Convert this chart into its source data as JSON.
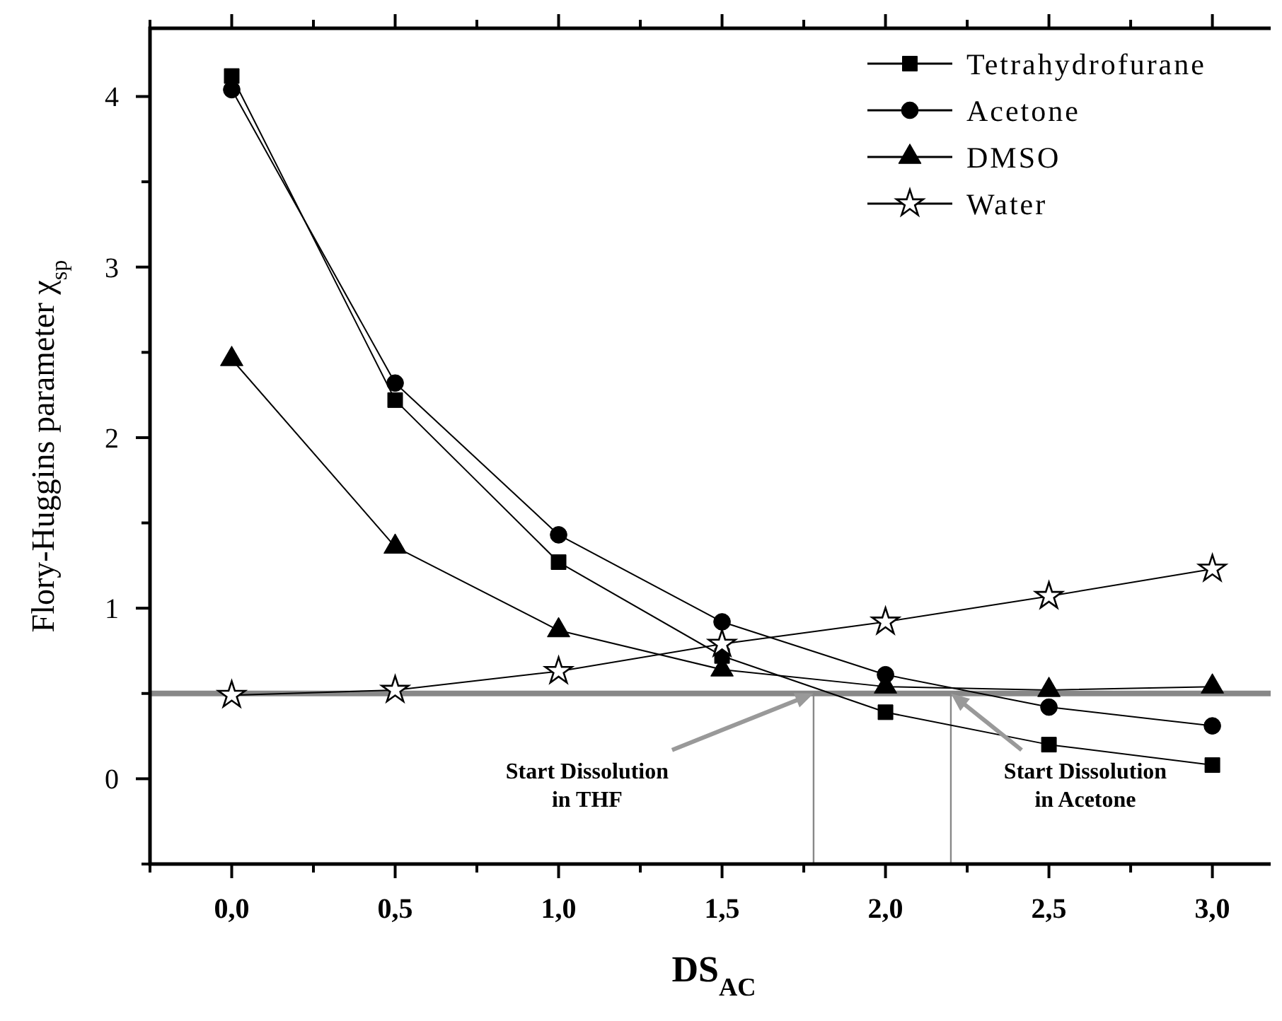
{
  "chart_data": {
    "type": "line",
    "xlabel": "DS$_{AC}$",
    "ylabel": "Flory-Huggins parameter χ$_{sp}$",
    "x": [
      0,
      0.5,
      1,
      1.5,
      2,
      2.5,
      3
    ],
    "series": [
      {
        "name": "Tetrahydrofurane",
        "color": "#000000",
        "marker": "square",
        "values": [
          4.12,
          2.22,
          1.27,
          0.72,
          0.39,
          0.2,
          0.08
        ]
      },
      {
        "name": "Acetone",
        "color": "#000000",
        "marker": "circle",
        "values": [
          4.04,
          2.32,
          1.43,
          0.92,
          0.61,
          0.42,
          0.31
        ]
      },
      {
        "name": "DMSO",
        "color": "#000000",
        "marker": "triangle",
        "values": [
          2.46,
          1.36,
          0.87,
          0.64,
          0.54,
          0.52,
          0.54
        ]
      },
      {
        "name": "Water",
        "color": "#000000",
        "marker": "star",
        "values": [
          0.49,
          0.52,
          0.63,
          0.79,
          0.92,
          1.07,
          1.23
        ]
      }
    ],
    "xlim": [
      -0.25,
      3.2
    ],
    "ylim": [
      -0.5,
      4.4
    ],
    "xticks": [
      {
        "value": -0.25,
        "label": null
      },
      {
        "value": 0,
        "label": "0,0"
      },
      {
        "value": 0.25,
        "label": null
      },
      {
        "value": 0.5,
        "label": "0,5"
      },
      {
        "value": 0.75,
        "label": null
      },
      {
        "value": 1,
        "label": "1,0"
      },
      {
        "value": 1.25,
        "label": null
      },
      {
        "value": 1.5,
        "label": "1,5"
      },
      {
        "value": 1.75,
        "label": null
      },
      {
        "value": 2,
        "label": "2,0"
      },
      {
        "value": 2.25,
        "label": null
      },
      {
        "value": 2.5,
        "label": "2,5"
      },
      {
        "value": 2.75,
        "label": null
      },
      {
        "value": 3,
        "label": "3,0"
      }
    ],
    "yticks": [
      {
        "value": -0.5,
        "label": null
      },
      0,
      {
        "value": 0.5,
        "label": null
      },
      1,
      {
        "value": 1.5,
        "label": null
      },
      2,
      {
        "value": 2.5,
        "label": null
      },
      3,
      {
        "value": 3.5,
        "label": null
      },
      4
    ],
    "ref_lines": [
      {
        "axis": "y",
        "value": 0.5,
        "color": "#888888"
      },
      {
        "axis": "x",
        "value": 1.78,
        "color": "#888888"
      },
      {
        "axis": "x",
        "value": 2.2,
        "color": "#888888"
      }
    ],
    "annotations": [
      {
        "text": "Start Dissolution\nin THF",
        "x": 1.78,
        "y": 0.5
      },
      {
        "text": "Start Dissolution\nin Acetone",
        "x": 2.2,
        "y": 0.5
      }
    ],
    "legend": "top right",
    "grid": false,
    "line_style": "solid"
  }
}
